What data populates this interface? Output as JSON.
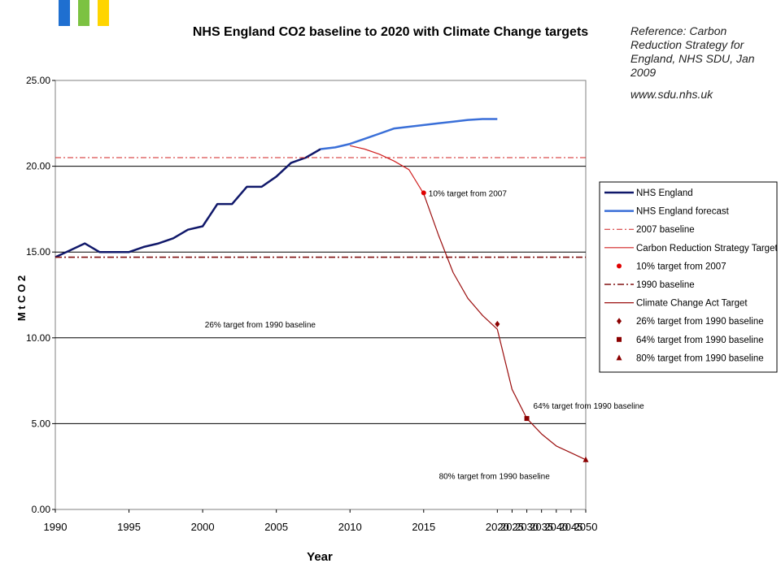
{
  "logo": {
    "colors": [
      "#1f6fd0",
      "#7cc242",
      "#ffd500"
    ]
  },
  "reference": {
    "line1": "Reference:  Carbon Reduction Strategy for England, NHS SDU, Jan 2009",
    "line2": "www.sdu.nhs.uk"
  },
  "chart_data": {
    "type": "line",
    "title": "NHS England CO2 baseline to 2020 with Climate Change targets",
    "xlabel": "Year",
    "ylabel": "M t C O 2",
    "ylim": [
      0,
      25
    ],
    "y_ticks": [
      "0.00",
      "5.00",
      "10.00",
      "15.00",
      "20.00",
      "25.00"
    ],
    "x_ticks": [
      "1990",
      "1995",
      "2000",
      "2005",
      "2010",
      "2015",
      "2020",
      "2025",
      "2030",
      "2035",
      "2040",
      "2045",
      "2050"
    ],
    "x_axis_note": "categories 1990-2020 yearly, then 2025-2050 in 5-year steps",
    "grid": "horizontal",
    "legend_position": "right",
    "legend": [
      "NHS England",
      "NHS England forecast",
      "2007 baseline",
      "Carbon Reduction Strategy Target",
      "10% target from 2007",
      "1990 baseline",
      "Climate Change Act Target",
      "26% target from 1990 baseline",
      "64% target from 1990 baseline",
      "80% target from 1990 baseline"
    ],
    "series": [
      {
        "name": "NHS England",
        "color": "#10186a",
        "x": [
          1990,
          1991,
          1992,
          1993,
          1994,
          1995,
          1996,
          1997,
          1998,
          1999,
          2000,
          2001,
          2002,
          2003,
          2004,
          2005,
          2006,
          2007,
          2008
        ],
        "values": [
          14.7,
          15.1,
          15.5,
          15.0,
          15.0,
          15.0,
          15.3,
          15.5,
          15.8,
          16.3,
          16.5,
          17.8,
          17.8,
          18.8,
          18.8,
          19.4,
          20.2,
          20.5,
          21.0
        ]
      },
      {
        "name": "NHS England forecast",
        "color": "#3a6fd8",
        "x": [
          2008,
          2009,
          2010,
          2011,
          2012,
          2013,
          2014,
          2015,
          2016,
          2017,
          2018,
          2019,
          2020
        ],
        "values": [
          21.0,
          21.1,
          21.3,
          21.6,
          21.9,
          22.2,
          22.3,
          22.4,
          22.5,
          22.6,
          22.7,
          22.75,
          22.75
        ]
      },
      {
        "name": "2007 baseline",
        "color": "#d02020",
        "style": "dash-dot",
        "value": 20.5
      },
      {
        "name": "1990 baseline",
        "color": "#801010",
        "style": "dash-dot",
        "value": 14.7
      },
      {
        "name": "Carbon Reduction Strategy Target",
        "color": "#d02020",
        "x": [
          2010,
          2011,
          2012,
          2013,
          2014,
          2015
        ],
        "values": [
          21.2,
          21.0,
          20.7,
          20.3,
          19.8,
          18.4
        ]
      },
      {
        "name": "Climate Change Act Target",
        "color": "#9c1010",
        "x": [
          2015,
          2016,
          2017,
          2018,
          2019,
          2020,
          2025,
          2030,
          2035,
          2040,
          2045,
          2050
        ],
        "values": [
          18.4,
          16.0,
          13.8,
          12.3,
          11.3,
          10.5,
          7.0,
          5.3,
          4.4,
          3.7,
          3.3,
          2.9
        ]
      }
    ],
    "points": [
      {
        "name": "10% target from 2007",
        "x": 2015,
        "y": 18.45,
        "color": "#e00000",
        "marker": "circle"
      },
      {
        "name": "26% target from 1990 baseline",
        "x": 2020,
        "y": 10.8,
        "color": "#8b0000",
        "marker": "diamond"
      },
      {
        "name": "64% target from 1990 baseline",
        "x": 2030,
        "y": 5.3,
        "color": "#8b0000",
        "marker": "square"
      },
      {
        "name": "80% target from 1990 baseline",
        "x": 2050,
        "y": 2.9,
        "color": "#8b0000",
        "marker": "triangle"
      }
    ],
    "annotations": [
      {
        "text": "10% target from 2007",
        "x": 2015,
        "y": 18.45
      },
      {
        "text": "26% target from 1990 baseline",
        "x": 2008,
        "y": 10.8
      },
      {
        "text": "64% target from 1990 baseline",
        "x": 2030,
        "y": 5.5
      },
      {
        "text": "80% target from 1990 baseline",
        "x": 2040,
        "y": 2.4
      }
    ]
  }
}
